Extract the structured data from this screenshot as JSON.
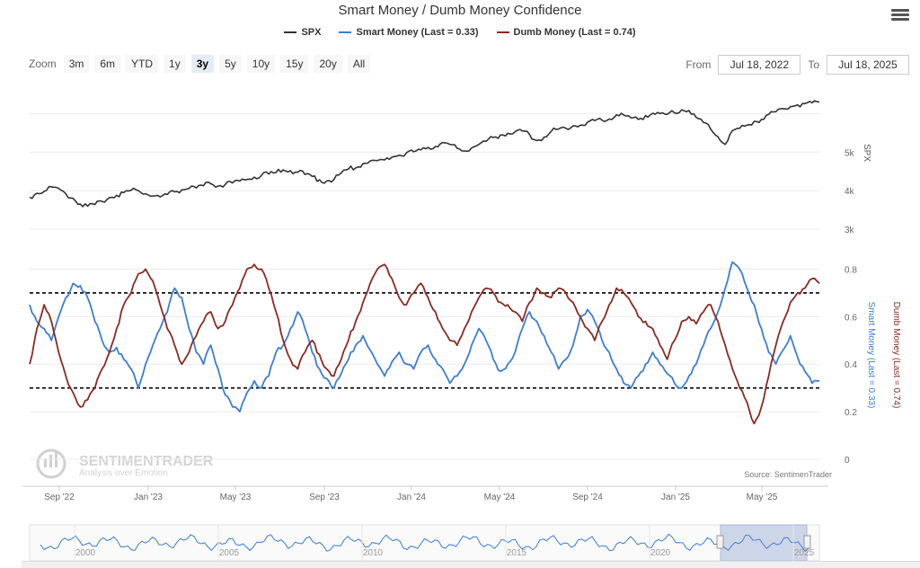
{
  "chart_title": "Smart Money / Dumb Money Confidence",
  "legend": [
    {
      "label": "SPX",
      "color": "#333333"
    },
    {
      "label": "Smart Money (Last = 0.33)",
      "color": "#3b7dd8"
    },
    {
      "label": "Dumb Money (Last = 0.74)",
      "color": "#8b2a22"
    }
  ],
  "zoom": {
    "label": "Zoom",
    "buttons": [
      "3m",
      "6m",
      "YTD",
      "1y",
      "3y",
      "5y",
      "10y",
      "15y",
      "20y",
      "All"
    ],
    "active": "3y"
  },
  "range": {
    "from_label": "From",
    "from_value": "Jul 18, 2022",
    "to_label": "To",
    "to_value": "Jul 18, 2025"
  },
  "watermark": {
    "name": "SENTIMENTRADER",
    "tagline": "Analysis over Emotion"
  },
  "source": "Source: SentimenTrader",
  "navigator_years": [
    "2000",
    "2005",
    "2010",
    "2015",
    "2020",
    "2025"
  ],
  "chart_data": {
    "type": "line",
    "x_ticks": [
      "Sep '22",
      "Jan '23",
      "May '23",
      "Sep '23",
      "Jan '24",
      "May '24",
      "Sep '24",
      "Jan '25",
      "May '25"
    ],
    "x_range": [
      "Jul 18, 2022",
      "Jul 18, 2025"
    ],
    "spx_axis": {
      "label": "SPX",
      "ticks": [
        "3k",
        "4k",
        "5k"
      ],
      "range": [
        3000,
        6500
      ]
    },
    "confidence_axis": {
      "left_label": "Smart Money (Last = 0.33)",
      "right_label": "Dumb Money (Last = 0.74)",
      "ticks": [
        "0",
        "0.2",
        "0.4",
        "0.6",
        "0.8"
      ],
      "range": [
        0,
        0.9
      ]
    },
    "thresholds": [
      0.7,
      0.3
    ],
    "series": [
      {
        "name": "SPX",
        "values": [
          3830,
          3930,
          3980,
          4100,
          4060,
          3920,
          3800,
          3650,
          3600,
          3640,
          3720,
          3820,
          3880,
          3950,
          4010,
          4000,
          3920,
          3860,
          3840,
          3900,
          3970,
          4020,
          4060,
          4070,
          4130,
          4180,
          4120,
          4160,
          4200,
          4250,
          4290,
          4350,
          4400,
          4430,
          4470,
          4540,
          4520,
          4480,
          4420,
          4370,
          4280,
          4250,
          4290,
          4460,
          4560,
          4590,
          4700,
          4770,
          4780,
          4800,
          4870,
          4920,
          4980,
          5010,
          5060,
          5120,
          5150,
          5250,
          5200,
          5100,
          5030,
          5110,
          5200,
          5280,
          5380,
          5450,
          5490,
          5530,
          5550,
          5460,
          5300,
          5390,
          5540,
          5600,
          5620,
          5680,
          5700,
          5780,
          5820,
          5830,
          5860,
          5970,
          5960,
          5890,
          5850,
          5950,
          6010,
          6000,
          5980,
          6020,
          6100,
          6080,
          5900,
          5770,
          5600,
          5400,
          5200,
          5560,
          5620,
          5700,
          5800,
          5850,
          5980,
          6050,
          6130,
          6180,
          6230,
          6260,
          6280,
          6300
        ]
      },
      {
        "name": "Smart Money (Last = 0.33)",
        "values": [
          0.65,
          0.58,
          0.55,
          0.5,
          0.6,
          0.68,
          0.74,
          0.73,
          0.68,
          0.58,
          0.5,
          0.45,
          0.47,
          0.42,
          0.38,
          0.3,
          0.4,
          0.48,
          0.55,
          0.62,
          0.72,
          0.68,
          0.55,
          0.45,
          0.4,
          0.48,
          0.38,
          0.27,
          0.22,
          0.2,
          0.28,
          0.33,
          0.3,
          0.35,
          0.45,
          0.48,
          0.55,
          0.62,
          0.55,
          0.45,
          0.38,
          0.34,
          0.3,
          0.36,
          0.42,
          0.48,
          0.52,
          0.46,
          0.4,
          0.35,
          0.41,
          0.45,
          0.4,
          0.38,
          0.45,
          0.48,
          0.42,
          0.38,
          0.32,
          0.35,
          0.4,
          0.48,
          0.55,
          0.5,
          0.42,
          0.37,
          0.4,
          0.45,
          0.55,
          0.62,
          0.58,
          0.52,
          0.45,
          0.38,
          0.42,
          0.48,
          0.6,
          0.63,
          0.58,
          0.5,
          0.45,
          0.38,
          0.32,
          0.3,
          0.35,
          0.4,
          0.45,
          0.4,
          0.36,
          0.32,
          0.3,
          0.35,
          0.4,
          0.48,
          0.55,
          0.62,
          0.72,
          0.83,
          0.8,
          0.72,
          0.65,
          0.55,
          0.45,
          0.4,
          0.46,
          0.52,
          0.43,
          0.37,
          0.32,
          0.33
        ]
      },
      {
        "name": "Dumb Money (Last = 0.74)",
        "values": [
          0.4,
          0.55,
          0.65,
          0.58,
          0.45,
          0.35,
          0.28,
          0.22,
          0.25,
          0.3,
          0.38,
          0.45,
          0.55,
          0.65,
          0.7,
          0.78,
          0.8,
          0.75,
          0.65,
          0.55,
          0.48,
          0.4,
          0.45,
          0.52,
          0.58,
          0.62,
          0.55,
          0.58,
          0.65,
          0.72,
          0.8,
          0.82,
          0.8,
          0.72,
          0.62,
          0.5,
          0.42,
          0.38,
          0.45,
          0.5,
          0.44,
          0.38,
          0.35,
          0.42,
          0.5,
          0.58,
          0.66,
          0.74,
          0.8,
          0.82,
          0.76,
          0.68,
          0.65,
          0.7,
          0.74,
          0.68,
          0.62,
          0.55,
          0.5,
          0.48,
          0.55,
          0.62,
          0.68,
          0.72,
          0.7,
          0.66,
          0.65,
          0.62,
          0.58,
          0.66,
          0.72,
          0.7,
          0.68,
          0.72,
          0.7,
          0.66,
          0.6,
          0.55,
          0.5,
          0.58,
          0.65,
          0.72,
          0.7,
          0.66,
          0.6,
          0.58,
          0.55,
          0.48,
          0.42,
          0.5,
          0.58,
          0.6,
          0.57,
          0.62,
          0.65,
          0.58,
          0.48,
          0.38,
          0.3,
          0.24,
          0.15,
          0.22,
          0.35,
          0.48,
          0.58,
          0.66,
          0.7,
          0.72,
          0.76,
          0.74
        ]
      }
    ]
  }
}
